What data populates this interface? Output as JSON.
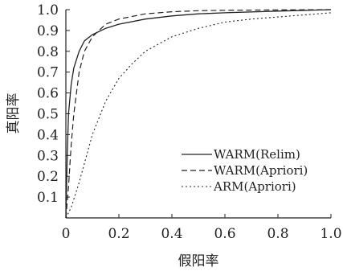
{
  "chart_data": {
    "type": "line",
    "xlabel": "假阳率",
    "ylabel": "真阳率",
    "xlim": [
      0,
      1.0
    ],
    "ylim": [
      0,
      1.0
    ],
    "x_ticks": [
      "0",
      "0.2",
      "0.4",
      "0.6",
      "0.8",
      "1.0"
    ],
    "y_ticks": [
      "0.1",
      "0.2",
      "0.3",
      "0.4",
      "0.5",
      "0.6",
      "0.7",
      "0.8",
      "0.9",
      "1.0"
    ],
    "grid": false,
    "legend_position": "lower-right",
    "series": [
      {
        "name": "WARM(Relim)",
        "line_style": "solid",
        "x": [
          0.0,
          0.005,
          0.01,
          0.02,
          0.03,
          0.05,
          0.07,
          0.1,
          0.15,
          0.2,
          0.3,
          0.4,
          0.5,
          0.6,
          0.8,
          1.0
        ],
        "y": [
          0.0,
          0.3,
          0.5,
          0.64,
          0.72,
          0.8,
          0.85,
          0.88,
          0.91,
          0.93,
          0.955,
          0.97,
          0.98,
          0.985,
          0.993,
          1.0
        ]
      },
      {
        "name": "WARM(Apriori)",
        "line_style": "dashed",
        "x": [
          0.0,
          0.01,
          0.02,
          0.03,
          0.05,
          0.07,
          0.1,
          0.15,
          0.2,
          0.3,
          0.4,
          0.5,
          0.6,
          0.8,
          1.0
        ],
        "y": [
          0.0,
          0.15,
          0.35,
          0.5,
          0.7,
          0.8,
          0.87,
          0.93,
          0.955,
          0.98,
          0.99,
          0.995,
          0.997,
          0.999,
          1.0
        ]
      },
      {
        "name": "ARM(Apriori)",
        "line_style": "dotted",
        "x": [
          0.0,
          0.02,
          0.05,
          0.1,
          0.15,
          0.2,
          0.25,
          0.3,
          0.4,
          0.5,
          0.6,
          0.7,
          0.8,
          0.9,
          1.0
        ],
        "y": [
          0.0,
          0.05,
          0.17,
          0.4,
          0.56,
          0.67,
          0.74,
          0.8,
          0.87,
          0.91,
          0.94,
          0.955,
          0.965,
          0.975,
          0.985
        ]
      }
    ]
  }
}
